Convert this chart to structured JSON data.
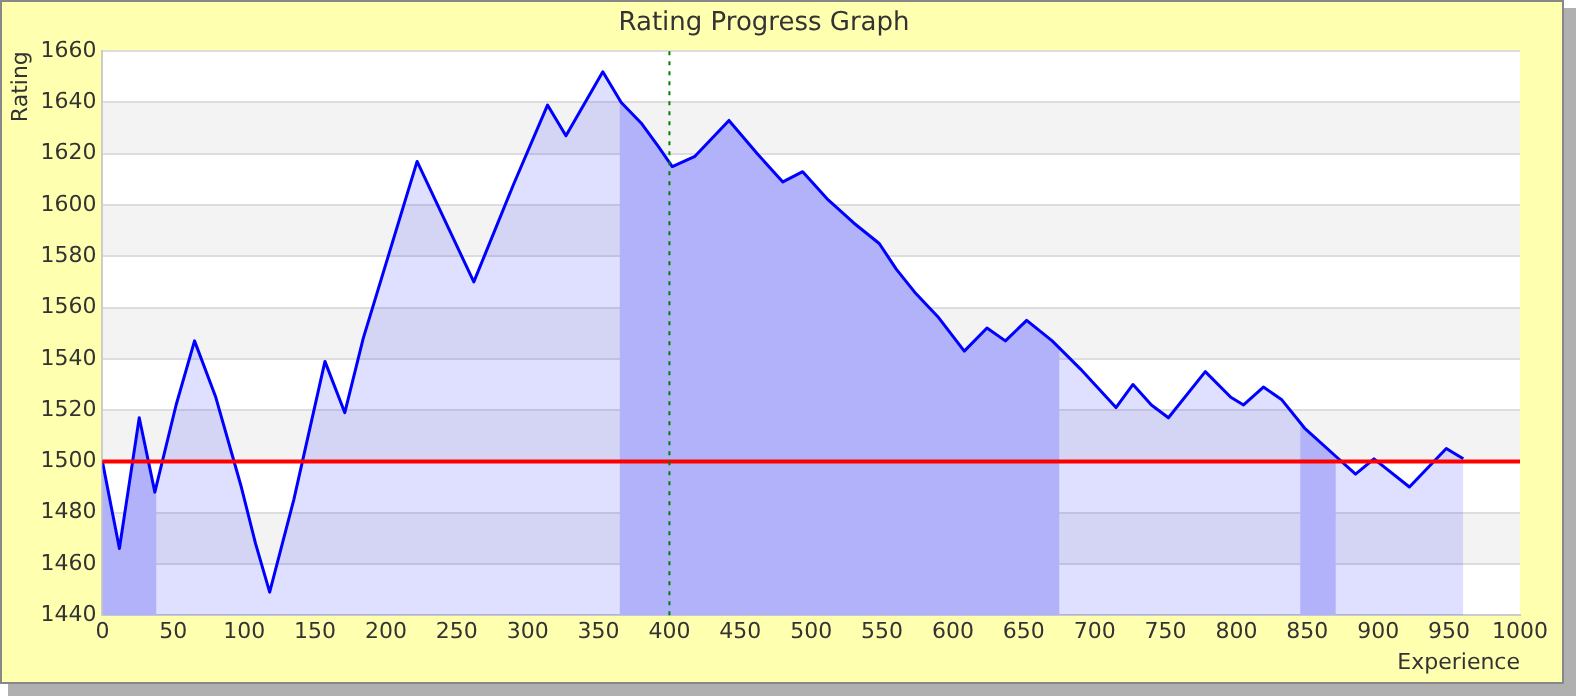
{
  "chart_data": {
    "type": "area",
    "title": "Rating Progress Graph",
    "xlabel": "Experience",
    "ylabel": "Rating",
    "x": [
      0,
      12,
      26,
      37,
      52,
      65,
      80,
      98,
      108,
      118,
      135,
      157,
      171,
      184,
      222,
      262,
      290,
      314,
      327,
      353,
      366,
      380,
      392,
      402,
      418,
      442,
      462,
      480,
      494,
      512,
      530,
      548,
      560,
      573,
      590,
      608,
      624,
      637,
      652,
      670,
      690,
      715,
      727,
      740,
      752,
      778,
      796,
      805,
      819,
      832,
      848,
      870,
      884,
      897,
      922,
      948,
      960
    ],
    "series": [
      {
        "color": "#0000ff",
        "values": [
          1500,
          1466,
          1517,
          1488,
          1522,
          1547,
          1525,
          1490,
          1468,
          1449,
          1485,
          1539,
          1519,
          1548,
          1617,
          1570,
          1608,
          1639,
          1627,
          1652,
          1640,
          1632,
          1623,
          1615,
          1619,
          1633,
          1620,
          1609,
          1613,
          1602,
          1593,
          1585,
          1575,
          1566,
          1556,
          1543,
          1552,
          1547,
          1555,
          1547,
          1536,
          1521,
          1530,
          1522,
          1517,
          1535,
          1525,
          1522,
          1529,
          1524,
          1513,
          1502,
          1495,
          1501,
          1490,
          1505,
          1501
        ]
      }
    ],
    "xlim": [
      0,
      1000
    ],
    "xticks": [
      0,
      50,
      100,
      150,
      200,
      250,
      300,
      350,
      400,
      450,
      500,
      550,
      600,
      650,
      700,
      750,
      800,
      850,
      900,
      950,
      1000
    ],
    "ylim": [
      1440,
      1660
    ],
    "yticks": [
      1440,
      1460,
      1480,
      1500,
      1520,
      1540,
      1560,
      1580,
      1600,
      1620,
      1640,
      1660
    ],
    "grid": "y",
    "legend": false,
    "marker": "none",
    "line_style": "solid",
    "ref_lines": [
      {
        "axis": "y",
        "value": 1500,
        "color": "#ff0000",
        "line_style": "solid"
      },
      {
        "axis": "x",
        "value": 400,
        "color": "#008000",
        "line_style": "dotted"
      }
    ],
    "bands": [
      {
        "axis": "x",
        "from": 0,
        "to": 38,
        "color": "#ccccfa"
      },
      {
        "axis": "x",
        "from": 365,
        "to": 675,
        "color": "#ccccfa"
      },
      {
        "axis": "x",
        "from": 845,
        "to": 870,
        "color": "#ccccfa"
      }
    ]
  }
}
